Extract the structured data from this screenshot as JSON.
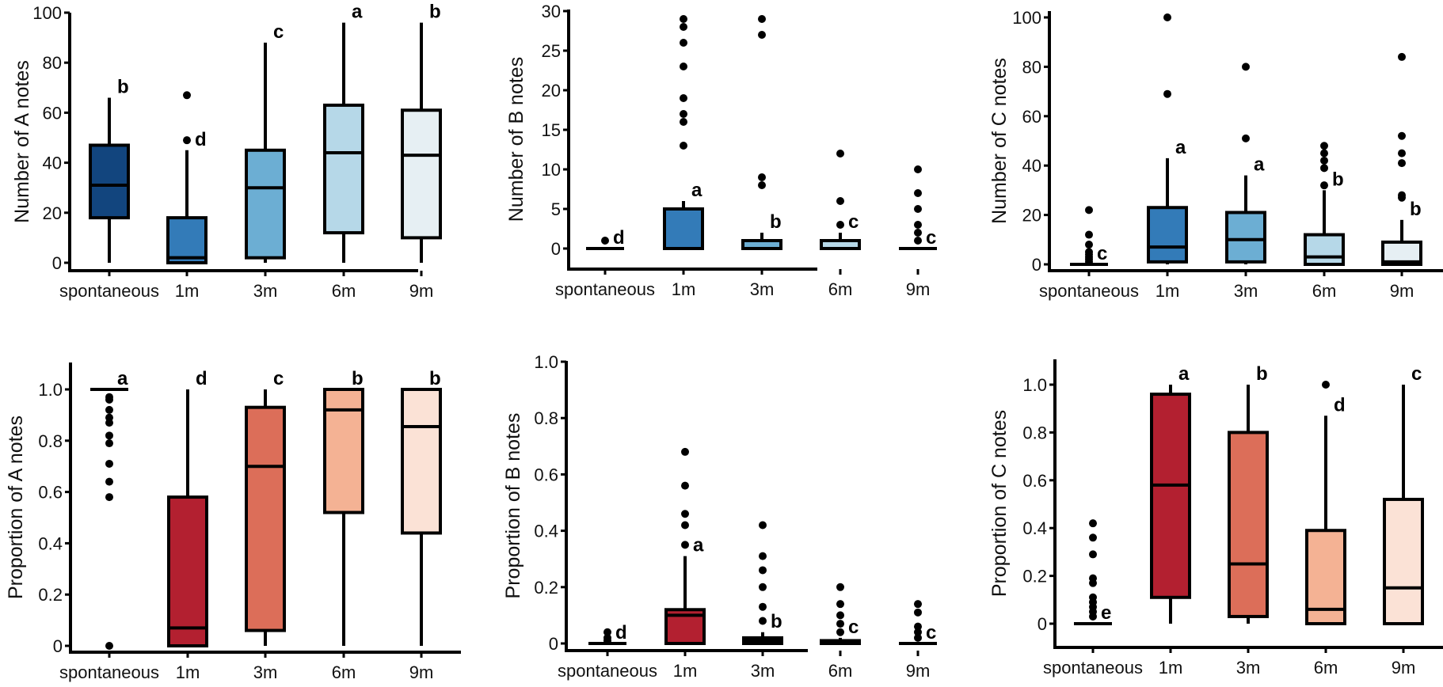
{
  "chart_data": [
    {
      "type": "box",
      "ylabel": "Number of A notes",
      "categories": [
        "spontaneous",
        "1m",
        "3m",
        "6m",
        "9m"
      ],
      "ylim": [
        0,
        100
      ],
      "yticks": [
        0,
        20,
        40,
        60,
        80,
        100
      ],
      "ytick_labels": [
        "0",
        "20",
        "40",
        "60",
        "80",
        "100"
      ],
      "colors": [
        "#12457e",
        "#337bb8",
        "#6caed3",
        "#b6d8e8",
        "#e6eff3"
      ],
      "series": [
        {
          "name": "spontaneous",
          "whisker_low": 0,
          "q1": 18,
          "median": 31,
          "q3": 47,
          "whisker_high": 66,
          "outliers": [],
          "letter": "b"
        },
        {
          "name": "1m",
          "whisker_low": 0,
          "q1": 0,
          "median": 2,
          "q3": 18,
          "whisker_high": 45,
          "outliers": [
            49,
            67
          ],
          "letter": "d"
        },
        {
          "name": "3m",
          "whisker_low": 0,
          "q1": 2,
          "median": 30,
          "q3": 45,
          "whisker_high": 88,
          "outliers": [],
          "letter": "c"
        },
        {
          "name": "6m",
          "whisker_low": 0,
          "q1": 12,
          "median": 44,
          "q3": 63,
          "whisker_high": 96,
          "outliers": [],
          "letter": "a"
        },
        {
          "name": "9m",
          "whisker_low": 0,
          "q1": 10,
          "median": 43,
          "q3": 61,
          "whisker_high": 96,
          "outliers": [],
          "letter": "b"
        }
      ]
    },
    {
      "type": "box",
      "ylabel": "Number of B notes",
      "categories": [
        "spontaneous",
        "1m",
        "3m",
        "6m",
        "9m"
      ],
      "ylim": [
        -2.5,
        30
      ],
      "yticks": [
        0,
        5,
        10,
        15,
        20,
        25,
        30
      ],
      "ytick_labels": [
        "0",
        "5",
        "10",
        "15",
        "20",
        "25",
        "30"
      ],
      "colors": [
        "#12457e",
        "#337bb8",
        "#6caed3",
        "#b6d8e8",
        "#e6eff3"
      ],
      "series": [
        {
          "name": "spontaneous",
          "whisker_low": 0,
          "q1": 0,
          "median": 0,
          "q3": 0,
          "whisker_high": 0,
          "outliers": [
            1
          ],
          "letter": "d"
        },
        {
          "name": "1m",
          "whisker_low": 0,
          "q1": 0,
          "median": 0,
          "q3": 5,
          "whisker_high": 6,
          "outliers": [
            13,
            16,
            17,
            19,
            23,
            26,
            28,
            29
          ],
          "letter": "a"
        },
        {
          "name": "3m",
          "whisker_low": 0,
          "q1": 0,
          "median": 0,
          "q3": 1,
          "whisker_high": 2,
          "outliers": [
            8,
            9,
            27,
            29
          ],
          "letter": "b"
        },
        {
          "name": "6m",
          "whisker_low": 0,
          "q1": 0,
          "median": 0,
          "q3": 1,
          "whisker_high": 2,
          "outliers": [
            3,
            6,
            12
          ],
          "letter": "c"
        },
        {
          "name": "9m",
          "whisker_low": 0,
          "q1": 0,
          "median": 0,
          "q3": 0,
          "whisker_high": 0,
          "outliers": [
            1,
            2,
            3,
            5,
            7,
            10
          ],
          "letter": "c"
        }
      ]
    },
    {
      "type": "box",
      "ylabel": "Number of C notes",
      "categories": [
        "spontaneous",
        "1m",
        "3m",
        "6m",
        "9m"
      ],
      "ylim": [
        -2.5,
        100
      ],
      "yticks": [
        0,
        20,
        40,
        60,
        80,
        100
      ],
      "ytick_labels": [
        "0",
        "20",
        "40",
        "60",
        "80",
        "100"
      ],
      "colors": [
        "#12457e",
        "#337bb8",
        "#6caed3",
        "#b6d8e8",
        "#e6eff3"
      ],
      "series": [
        {
          "name": "spontaneous",
          "whisker_low": 0,
          "q1": 0,
          "median": 0,
          "q3": 0,
          "whisker_high": 0,
          "outliers": [
            1,
            2,
            3,
            4,
            5,
            8,
            12,
            22
          ],
          "letter": "c"
        },
        {
          "name": "1m",
          "whisker_low": 0,
          "q1": 1,
          "median": 7,
          "q3": 23,
          "whisker_high": 43,
          "outliers": [
            69,
            100
          ],
          "letter": "a"
        },
        {
          "name": "3m",
          "whisker_low": 0,
          "q1": 1,
          "median": 10,
          "q3": 21,
          "whisker_high": 36,
          "outliers": [
            51,
            80
          ],
          "letter": "a"
        },
        {
          "name": "6m",
          "whisker_low": 0,
          "q1": 0,
          "median": 3,
          "q3": 12,
          "whisker_high": 30,
          "outliers": [
            32,
            39,
            42,
            45,
            48
          ],
          "letter": "b"
        },
        {
          "name": "9m",
          "whisker_low": 0,
          "q1": 0,
          "median": 1,
          "q3": 9,
          "whisker_high": 18,
          "outliers": [
            27,
            28,
            41,
            45,
            52,
            84
          ],
          "letter": "b"
        }
      ]
    },
    {
      "type": "box",
      "ylabel": "Proportion of A notes",
      "categories": [
        "spontaneous",
        "1m",
        "3m",
        "6m",
        "9m"
      ],
      "ylim": [
        -0.02,
        1.1
      ],
      "yticks": [
        0,
        0.2,
        0.4,
        0.6,
        0.8,
        1.0
      ],
      "ytick_labels": [
        "0",
        "0.2",
        "0.4",
        "0.6",
        "0.8",
        "1.0"
      ],
      "colors": [
        "#b32030",
        "#b32030",
        "#dc6e59",
        "#f4b294",
        "#fbe2d6"
      ],
      "series": [
        {
          "name": "spontaneous",
          "whisker_low": 1.0,
          "q1": 1.0,
          "median": 1.0,
          "q3": 1.0,
          "whisker_high": 1.0,
          "outliers": [
            0,
            0.58,
            0.64,
            0.71,
            0.79,
            0.82,
            0.87,
            0.89,
            0.92,
            0.96,
            0.97
          ],
          "letter": "a"
        },
        {
          "name": "1m",
          "whisker_low": 0,
          "q1": 0,
          "median": 0.07,
          "q3": 0.58,
          "whisker_high": 1.0,
          "outliers": [],
          "letter": "d"
        },
        {
          "name": "3m",
          "whisker_low": 0,
          "q1": 0.06,
          "median": 0.7,
          "q3": 0.93,
          "whisker_high": 1.0,
          "outliers": [],
          "letter": "c"
        },
        {
          "name": "6m",
          "whisker_low": 0,
          "q1": 0.52,
          "median": 0.92,
          "q3": 1.0,
          "whisker_high": 1.0,
          "outliers": [],
          "letter": "b"
        },
        {
          "name": "9m",
          "whisker_low": 0,
          "q1": 0.44,
          "median": 0.855,
          "q3": 1.0,
          "whisker_high": 1.0,
          "outliers": [],
          "letter": "b"
        }
      ]
    },
    {
      "type": "box",
      "ylabel": "Proportion of B notes",
      "categories": [
        "spontaneous",
        "1m",
        "3m",
        "6m",
        "9m"
      ],
      "ylim": [
        -0.015,
        1.0
      ],
      "yticks": [
        0,
        0.2,
        0.4,
        0.6,
        0.8,
        1.0
      ],
      "ytick_labels": [
        "0",
        "0.2",
        "0.4",
        "0.6",
        "0.8",
        "1.0"
      ],
      "colors": [
        "#b32030",
        "#b32030",
        "#dc6e59",
        "#f4b294",
        "#fbe2d6"
      ],
      "series": [
        {
          "name": "spontaneous",
          "whisker_low": 0,
          "q1": 0,
          "median": 0,
          "q3": 0,
          "whisker_high": 0,
          "outliers": [
            0.01,
            0.02,
            0.04
          ],
          "letter": "d"
        },
        {
          "name": "1m",
          "whisker_low": 0,
          "q1": 0,
          "median": 0.1,
          "q3": 0.12,
          "whisker_high": 0.31,
          "outliers": [
            0.35,
            0.42,
            0.46,
            0.56,
            0.68
          ],
          "letter": "a"
        },
        {
          "name": "3m",
          "whisker_low": 0,
          "q1": 0,
          "median": 0.01,
          "q3": 0.02,
          "whisker_high": 0.04,
          "outliers": [
            0.08,
            0.13,
            0.2,
            0.26,
            0.31,
            0.42
          ],
          "letter": "b"
        },
        {
          "name": "6m",
          "whisker_low": 0,
          "q1": 0,
          "median": 0.005,
          "q3": 0.01,
          "whisker_high": 0.02,
          "outliers": [
            0.04,
            0.07,
            0.1,
            0.14,
            0.2
          ],
          "letter": "c"
        },
        {
          "name": "9m",
          "whisker_low": 0,
          "q1": 0,
          "median": 0,
          "q3": 0,
          "whisker_high": 0,
          "outliers": [
            0.02,
            0.04,
            0.06,
            0.11,
            0.14
          ],
          "letter": "c"
        }
      ]
    },
    {
      "type": "box",
      "ylabel": "Proportion of C notes",
      "categories": [
        "spontaneous",
        "1m",
        "3m",
        "6m",
        "9m"
      ],
      "ylim": [
        -0.1,
        1.1
      ],
      "yticks": [
        0,
        0.2,
        0.4,
        0.6,
        0.8,
        1.0
      ],
      "ytick_labels": [
        "0",
        "0.2",
        "0.4",
        "0.6",
        "0.8",
        "1.0"
      ],
      "colors": [
        "#b32030",
        "#b32030",
        "#dc6e59",
        "#f4b294",
        "#fbe2d6"
      ],
      "series": [
        {
          "name": "spontaneous",
          "whisker_low": 0,
          "q1": 0,
          "median": 0,
          "q3": 0,
          "whisker_high": 0,
          "outliers": [
            0.03,
            0.05,
            0.07,
            0.09,
            0.11,
            0.17,
            0.19,
            0.29,
            0.36,
            0.42
          ],
          "letter": "e"
        },
        {
          "name": "1m",
          "whisker_low": 0,
          "q1": 0.11,
          "median": 0.58,
          "q3": 0.96,
          "whisker_high": 1.0,
          "outliers": [],
          "letter": "a"
        },
        {
          "name": "3m",
          "whisker_low": 0,
          "q1": 0.03,
          "median": 0.25,
          "q3": 0.8,
          "whisker_high": 1.0,
          "outliers": [],
          "letter": "b"
        },
        {
          "name": "6m",
          "whisker_low": 0,
          "q1": 0,
          "median": 0.06,
          "q3": 0.39,
          "whisker_high": 0.87,
          "outliers": [
            1.0
          ],
          "letter": "d"
        },
        {
          "name": "9m",
          "whisker_low": 0,
          "q1": 0,
          "median": 0.15,
          "q3": 0.52,
          "whisker_high": 1.0,
          "outliers": [],
          "letter": "c"
        }
      ]
    }
  ]
}
